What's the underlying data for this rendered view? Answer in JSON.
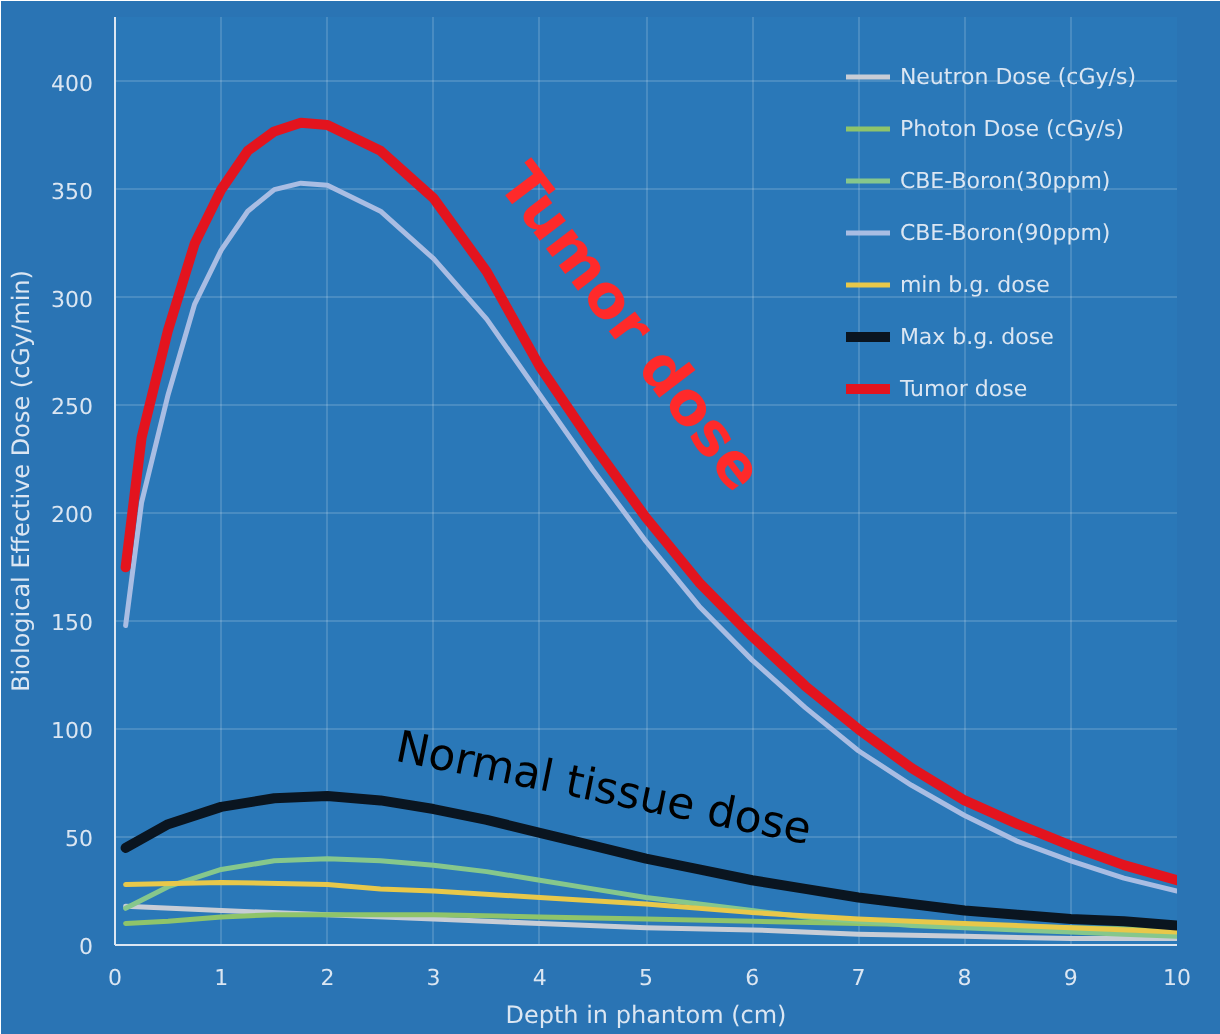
{
  "chart_data": {
    "type": "line",
    "xlabel": "Depth in phantom (cm)",
    "ylabel": "Biological Effective Dose (cGy/min)",
    "xlim": [
      0,
      10
    ],
    "ylim": [
      0,
      430
    ],
    "xticks": [
      0,
      1,
      2,
      3,
      4,
      5,
      6,
      7,
      8,
      9,
      10
    ],
    "yticks": [
      0,
      50,
      100,
      150,
      200,
      250,
      300,
      350,
      400
    ],
    "grid": true,
    "legend": "top right",
    "marker": "none",
    "line_style": "solid",
    "annotations": [
      "Tumor dose",
      "Normal tissue dose"
    ],
    "series": [
      {
        "name": "Neutron Dose (cGy/s)",
        "color": "#c8cdd6",
        "x": [
          0.1,
          1,
          2,
          3,
          4,
          5,
          6,
          7,
          8,
          9,
          10
        ],
        "values": [
          18,
          16,
          14,
          12,
          10,
          8,
          7,
          5,
          4,
          3,
          3
        ]
      },
      {
        "name": "Photon Dose (cGy/s)",
        "color": "#8fc46a",
        "x": [
          0.1,
          0.5,
          1,
          1.5,
          2,
          3,
          4,
          5,
          6,
          7,
          8,
          9,
          10
        ],
        "values": [
          10,
          11,
          13,
          14,
          14,
          14,
          13,
          12,
          11,
          10,
          9,
          8,
          7
        ]
      },
      {
        "name": "CBE-Boron(30ppm)",
        "color": "#86c78c",
        "x": [
          0.1,
          0.5,
          1,
          1.5,
          2,
          2.5,
          3,
          3.5,
          4,
          4.5,
          5,
          5.5,
          6,
          6.5,
          7,
          7.5,
          8,
          8.5,
          9,
          9.5,
          10
        ],
        "values": [
          17,
          27,
          35,
          39,
          40,
          39,
          37,
          34,
          30,
          26,
          22,
          19,
          16,
          13,
          11,
          9,
          8,
          7,
          6,
          5,
          4
        ]
      },
      {
        "name": "CBE-Boron(90ppm)",
        "color": "#a9bde3",
        "x": [
          0.1,
          0.25,
          0.5,
          0.75,
          1,
          1.25,
          1.5,
          1.75,
          2,
          2.5,
          3,
          3.5,
          4,
          4.5,
          5,
          5.5,
          6,
          6.5,
          7,
          7.5,
          8,
          8.5,
          9,
          9.5,
          10
        ],
        "values": [
          148,
          205,
          255,
          297,
          322,
          340,
          350,
          353,
          352,
          340,
          318,
          290,
          255,
          220,
          187,
          157,
          132,
          110,
          90,
          74,
          60,
          48,
          39,
          31,
          25
        ]
      },
      {
        "name": "min b.g. dose",
        "color": "#e8c84a",
        "x": [
          0.1,
          1,
          2,
          2.5,
          3,
          4,
          5,
          6,
          7,
          8,
          9,
          10
        ],
        "values": [
          28,
          29,
          28,
          26,
          25,
          22,
          19,
          15,
          12,
          10,
          8,
          6
        ]
      },
      {
        "name": "Max b.g. dose",
        "color": "#0a1520",
        "x": [
          0.1,
          0.5,
          1,
          1.5,
          2,
          2.5,
          3,
          3.5,
          4,
          4.5,
          5,
          5.5,
          6,
          6.5,
          7,
          7.5,
          8,
          8.5,
          9,
          9.5,
          10
        ],
        "values": [
          45,
          56,
          64,
          68,
          69,
          67,
          63,
          58,
          52,
          46,
          40,
          35,
          30,
          26,
          22,
          19,
          16,
          14,
          12,
          11,
          9
        ]
      },
      {
        "name": "Tumor dose",
        "color": "#e3141e",
        "x": [
          0.1,
          0.25,
          0.5,
          0.75,
          1,
          1.25,
          1.5,
          1.75,
          2,
          2.5,
          3,
          3.5,
          4,
          4.5,
          5,
          5.5,
          6,
          6.5,
          7,
          7.5,
          8,
          8.5,
          9,
          9.5,
          10
        ],
        "values": [
          175,
          235,
          285,
          325,
          350,
          368,
          377,
          381,
          380,
          368,
          346,
          312,
          268,
          232,
          198,
          168,
          143,
          120,
          100,
          82,
          67,
          56,
          46,
          37,
          30
        ]
      }
    ]
  }
}
